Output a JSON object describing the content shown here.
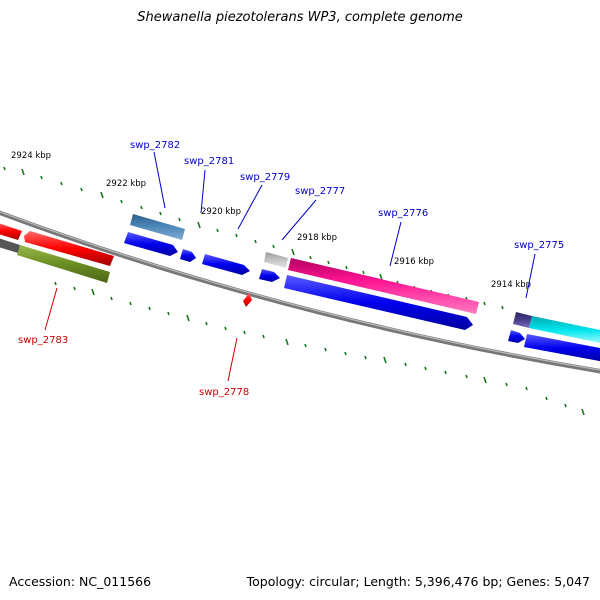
{
  "title": "Shewanella piezotolerans WP3, complete genome",
  "footer": {
    "accession": "Accession: NC_011566",
    "topology": "Topology: circular; Length: 5,396,476 bp; Genes: 5,047"
  },
  "kbp_ticks": [
    "2924 kbp",
    "2922 kbp",
    "2920 kbp",
    "2918 kbp",
    "2916 kbp",
    "2914 kbp"
  ],
  "gene_labels": {
    "swp_2782": "swp_2782",
    "swp_2781": "swp_2781",
    "swp_2779": "swp_2779",
    "swp_2777": "swp_2777",
    "swp_2776": "swp_2776",
    "swp_2775": "swp_2775",
    "swp_2783": "swp_2783",
    "swp_2778": "swp_2778"
  },
  "colors": {
    "label_blue": "#0000cc",
    "label_red": "#cc0000",
    "cds_blue": "#0000ee",
    "red": "#ff0000",
    "olive": "#6b8e23",
    "steel": "#4682b4",
    "gray": "#bbbbbb",
    "pink": "#ff1493",
    "navy": "#483d8b",
    "cyan": "#00e5ee",
    "tick": "#1a7a1a",
    "backbone": "#888888"
  }
}
